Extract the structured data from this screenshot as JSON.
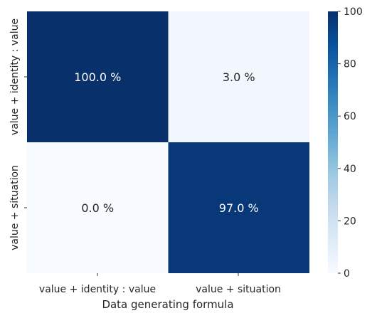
{
  "chart_data": {
    "type": "heatmap",
    "x_categories": [
      "value + identity : value",
      "value + situation"
    ],
    "y_categories": [
      "value + identity : value",
      "value + situation"
    ],
    "values": [
      [
        100.0,
        3.0
      ],
      [
        0.0,
        97.0
      ]
    ],
    "cell_labels": [
      [
        "100.0 %",
        "3.0 %"
      ],
      [
        "0.0 %",
        "97.0 %"
      ]
    ],
    "xlabel": "Data generating formula",
    "ylabel": "",
    "colorbar": {
      "range": [
        0,
        100
      ],
      "ticks": [
        "0",
        "20",
        "40",
        "60",
        "80",
        "100"
      ],
      "colormap": "Blues",
      "low_color": "#f7fbff",
      "high_color": "#08306b"
    },
    "grid": false
  }
}
